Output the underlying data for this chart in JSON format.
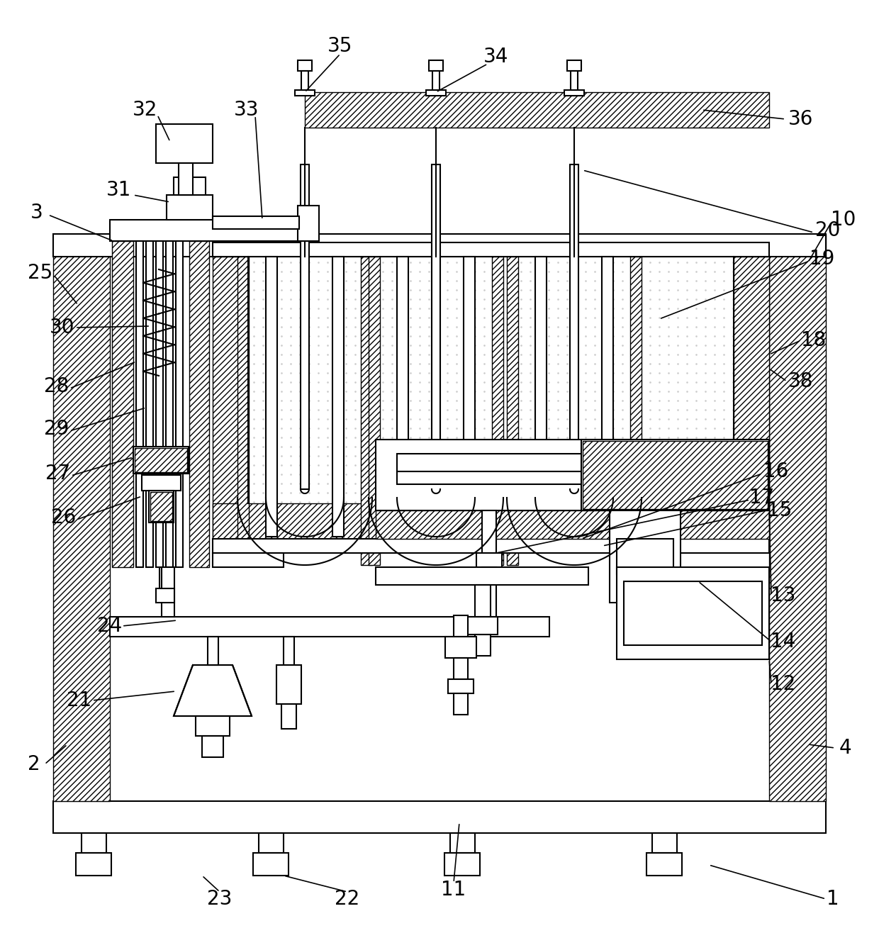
{
  "bg": "#ffffff",
  "lw": 1.5,
  "lw_thin": 1.0,
  "fs": 20,
  "fig_w": 12.4,
  "fig_h": 13.16,
  "dpi": 100
}
